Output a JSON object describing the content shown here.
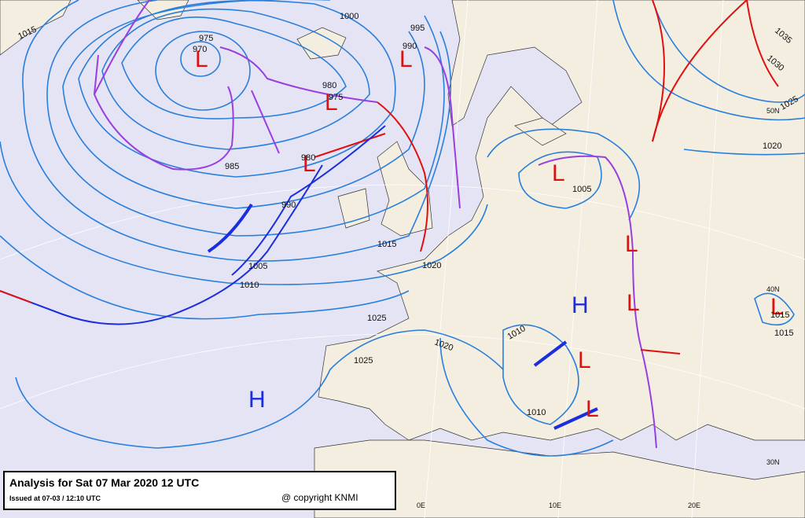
{
  "header": {
    "title": "Analysis for Sat 07 Mar 2020 12 UTC",
    "issued": "Issued at 07-03 / 12:10 UTC",
    "copyright": "@ copyright KNMI"
  },
  "pressure_systems": [
    "L",
    "L",
    "L",
    "L",
    "L",
    "L",
    "L",
    "L",
    "L",
    "L",
    "H",
    "H"
  ],
  "isobar_labels": [
    "1015",
    "1000",
    "995",
    "975",
    "970",
    "990",
    "980",
    "975",
    "985",
    "980",
    "990",
    "1005",
    "1010",
    "1015",
    "1020",
    "1025",
    "1025",
    "1020",
    "1010",
    "1010",
    "1005",
    "1035",
    "1030",
    "1025",
    "1020",
    "1015",
    "1015"
  ],
  "graticule_labels": [
    "50N",
    "40N",
    "30N",
    "0E",
    "10E",
    "20E"
  ]
}
